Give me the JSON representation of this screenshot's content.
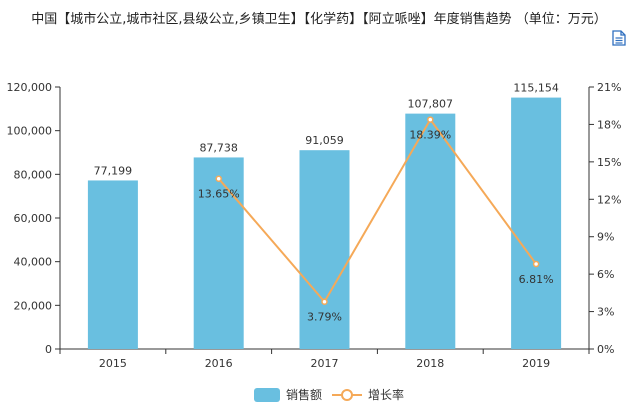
{
  "title": "中国【城市公立,城市社区,县级公立,乡镇卫生】【化学药】【阿立哌唑】年度销售趋势 （单位：万元）",
  "colors": {
    "bar": "#69bfe0",
    "line": "#f5a958",
    "axis": "#333333",
    "grid": "#e6e6e6"
  },
  "icons": {
    "toolbox": "document-icon"
  },
  "legend": [
    {
      "label": "销售额",
      "type": "bar"
    },
    {
      "label": "增长率",
      "type": "line"
    }
  ],
  "chart_data": {
    "type": "bar",
    "categories": [
      "2015",
      "2016",
      "2017",
      "2018",
      "2019"
    ],
    "series": [
      {
        "name": "销售额",
        "type": "bar",
        "values": [
          77199,
          87738,
          91059,
          107807,
          115154
        ],
        "labels": [
          "77,199",
          "87,738",
          "91,059",
          "107,807",
          "115,154"
        ]
      },
      {
        "name": "增长率",
        "type": "line",
        "values": [
          null,
          13.65,
          3.79,
          18.39,
          6.81
        ],
        "labels": [
          "",
          "13.65%",
          "3.79%",
          "18.39%",
          "6.81%"
        ]
      }
    ],
    "y_left": {
      "ylim": [
        0,
        120000
      ],
      "ticks": [
        "0",
        "20,000",
        "40,000",
        "60,000",
        "80,000",
        "100,000",
        "120,000"
      ]
    },
    "y_right": {
      "ylim": [
        0,
        21
      ],
      "ticks": [
        "0%",
        "3%",
        "6%",
        "9%",
        "12%",
        "15%",
        "18%",
        "21%"
      ]
    },
    "grid": false,
    "legend_position": "bottom-center"
  }
}
